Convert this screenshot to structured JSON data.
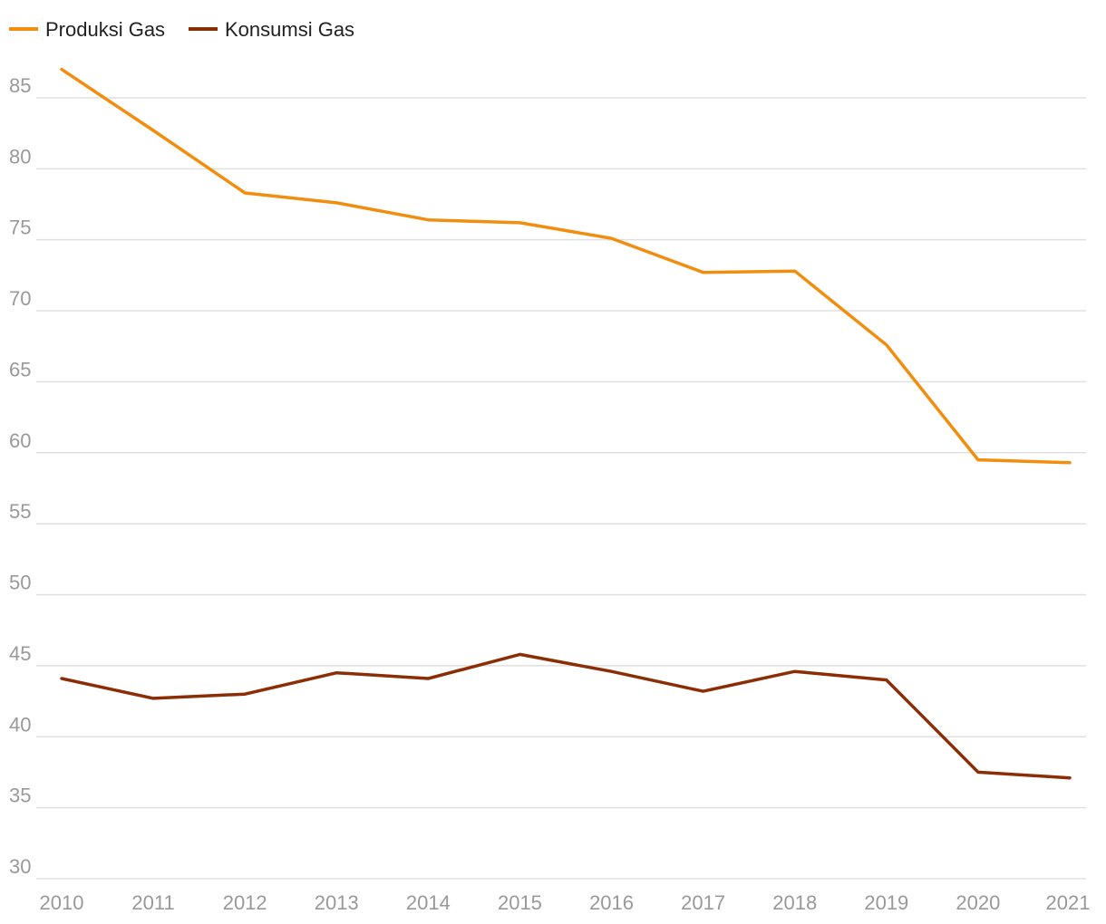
{
  "colors": {
    "grid": "#e0e0e0",
    "tick_text": "#999999",
    "background": "#ffffff"
  },
  "chart_data": {
    "type": "line",
    "title": "",
    "xlabel": "",
    "ylabel": "",
    "x": [
      2010,
      2011,
      2012,
      2013,
      2014,
      2015,
      2016,
      2017,
      2018,
      2019,
      2020,
      2021
    ],
    "x_tick_labels": [
      "2010",
      "2011",
      "2012",
      "2013",
      "2014",
      "2015",
      "2016",
      "2017",
      "2018",
      "2019",
      "2020",
      "2021"
    ],
    "y_ticks": [
      30,
      35,
      40,
      45,
      50,
      55,
      60,
      65,
      70,
      75,
      80,
      85
    ],
    "y_tick_labels": [
      "30",
      "35",
      "40",
      "45",
      "50",
      "55",
      "60",
      "65",
      "70",
      "75",
      "80",
      "85"
    ],
    "ylim": [
      30,
      87.5
    ],
    "grid": true,
    "legend_position": "top-left",
    "series": [
      {
        "name": "Produksi Gas",
        "color": "#F28E0F",
        "values": [
          87.0,
          82.7,
          78.3,
          77.6,
          76.4,
          76.2,
          75.1,
          72.7,
          72.8,
          67.6,
          59.5,
          59.3
        ]
      },
      {
        "name": "Konsumsi Gas",
        "color": "#8B2E06",
        "values": [
          44.1,
          42.7,
          43.0,
          44.5,
          44.1,
          45.8,
          44.6,
          43.2,
          44.6,
          44.0,
          37.5,
          37.1
        ]
      }
    ]
  }
}
